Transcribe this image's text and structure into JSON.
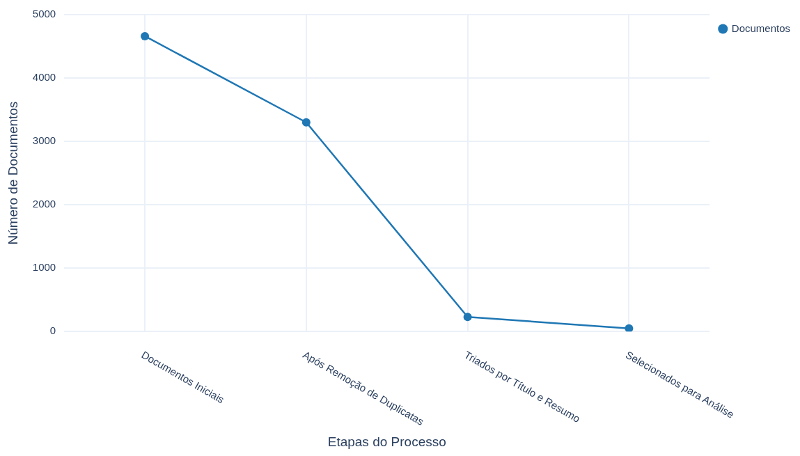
{
  "chart_data": {
    "type": "line",
    "xlabel": "Etapas do Processo",
    "ylabel": "Número de Documentos",
    "categories": [
      "Documentos Iniciais",
      "Após Remoção de Duplicatas",
      "Triados por Título e Resumo",
      "Selecionados para Análise"
    ],
    "series": [
      {
        "name": "Documentos",
        "color": "#1f77b4",
        "values": [
          4660,
          3300,
          230,
          50
        ]
      }
    ],
    "ylim": [
      0,
      5000
    ],
    "yticks": [
      0,
      1000,
      2000,
      3000,
      4000,
      5000
    ],
    "grid": true,
    "legend": "top right",
    "marker": "circle",
    "line_style": "solid"
  }
}
